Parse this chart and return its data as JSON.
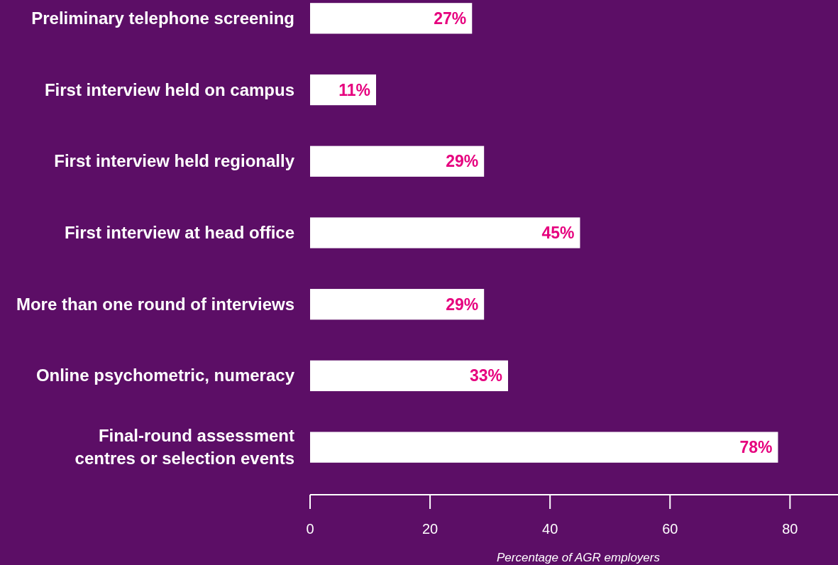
{
  "chart_data": {
    "type": "bar",
    "orientation": "horizontal",
    "xlabel": "Percentage of AGR employers",
    "categories": [
      "Preliminary telephone screening",
      "First interview held on campus",
      "First interview held regionally",
      "First interview at head office",
      "More than one round of interviews",
      "Online psychometric, numeracy",
      "Final-round assessment centres or selection events"
    ],
    "values": [
      27,
      11,
      29,
      45,
      29,
      33,
      78
    ],
    "color": "#ffffff",
    "value_labels": [
      "27%",
      "11%",
      "29%",
      "45%",
      "29%",
      "33%",
      "78%"
    ],
    "xlim": [
      0,
      88
    ],
    "xticks": [
      0,
      20,
      40,
      60,
      80
    ],
    "grid": false
  }
}
